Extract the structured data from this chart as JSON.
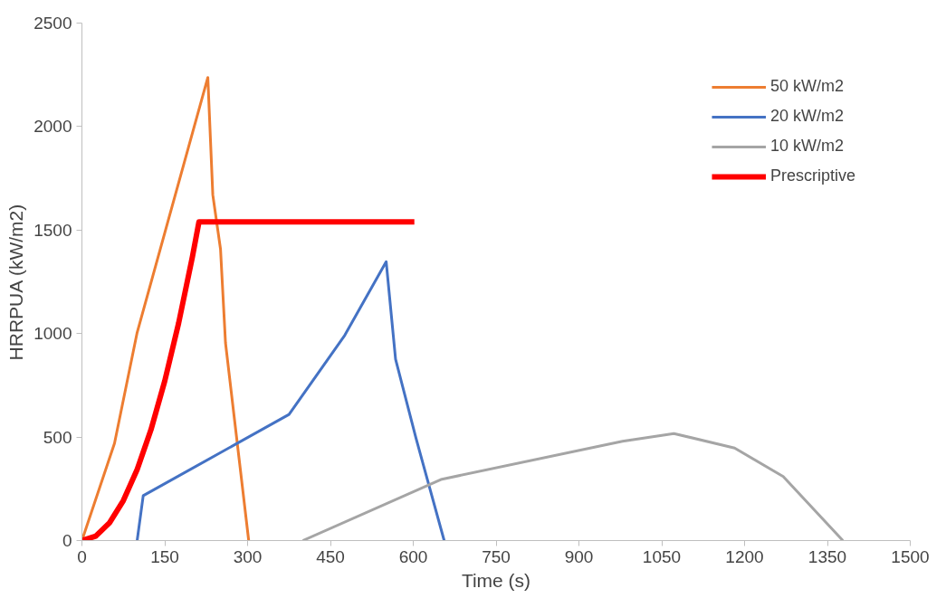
{
  "chart_data": {
    "type": "line",
    "xlabel": "Time (s)",
    "ylabel": "HRRPUA (kW/m2)",
    "xlim": [
      0,
      1500
    ],
    "ylim": [
      0,
      2500
    ],
    "xticks": [
      0,
      150,
      300,
      450,
      600,
      750,
      900,
      1050,
      1200,
      1350,
      1500
    ],
    "yticks": [
      0,
      500,
      1000,
      1500,
      2000,
      2500
    ],
    "grid": false,
    "legend": "top right",
    "marker": "none",
    "line_style": "solid",
    "series": [
      {
        "name": "50 kW/m2",
        "color": "#ed7d31",
        "x": [
          0,
          59,
          100,
          228,
          237,
          251,
          260,
          302
        ],
        "values": [
          0,
          470,
          1005,
          2237,
          1670,
          1407,
          955,
          0
        ]
      },
      {
        "name": "20 kW/m2",
        "color": "#4472c4",
        "x": [
          100,
          111,
          375,
          476,
          551,
          568,
          605,
          656
        ],
        "values": [
          0,
          217,
          609,
          992,
          1347,
          876,
          494,
          0
        ]
      },
      {
        "name": "10 kW/m2",
        "color": "#a5a5a5",
        "x": [
          400,
          650,
          979,
          1072,
          1182,
          1270,
          1378
        ],
        "values": [
          0,
          295,
          480,
          517,
          447,
          309,
          0
        ]
      },
      {
        "name": "Prescriptive",
        "color": "#ff0000",
        "x": [
          0,
          25,
          50,
          75,
          100,
          125,
          150,
          175,
          200,
          212,
          602
        ],
        "values": [
          0,
          21,
          86,
          193,
          343,
          535,
          771,
          1049,
          1370,
          1540,
          1540
        ]
      }
    ]
  }
}
